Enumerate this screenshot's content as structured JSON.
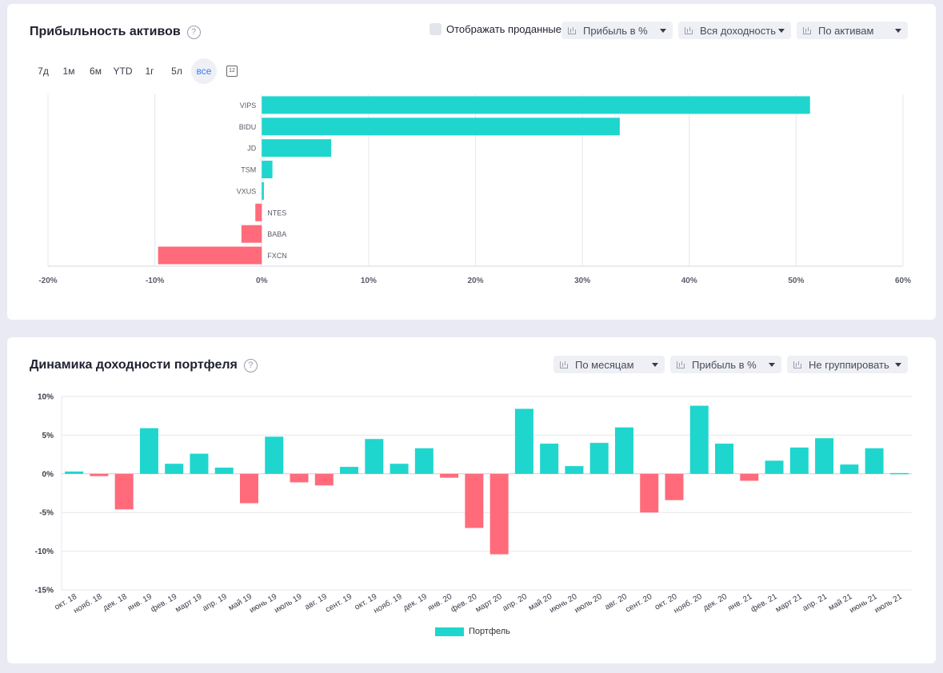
{
  "card1": {
    "title": "Прибыльность активов",
    "help": "?",
    "show_sold_label": "Отображать проданные",
    "dropdowns": [
      "Прибыль в %",
      "Вся доходность",
      "По активам"
    ],
    "periods": [
      "7д",
      "1м",
      "6м",
      "YTD",
      "1г",
      "5л",
      "все"
    ],
    "active_period": "все",
    "calendar_text": "12"
  },
  "card2": {
    "title": "Динамика доходности портфеля",
    "help": "?",
    "dropdowns": [
      "По месяцам",
      "Прибыль в %",
      "Не группировать"
    ],
    "legend": "Портфель"
  },
  "colors": {
    "positive": "#1ed6ce",
    "negative": "#ff6b7a",
    "accent": "#3d7df0"
  },
  "chart_data": [
    {
      "type": "bar",
      "orientation": "horizontal",
      "categories": [
        "VIPS",
        "BIDU",
        "JD",
        "TSM",
        "VXUS",
        "NTES",
        "BABA",
        "FXCN"
      ],
      "values": [
        51.3,
        33.5,
        6.5,
        1.0,
        0.2,
        -0.6,
        -1.9,
        -9.7
      ],
      "xlim": [
        -20,
        60
      ],
      "xticks": [
        "-20%",
        "-10%",
        "0%",
        "10%",
        "20%",
        "30%",
        "40%",
        "50%",
        "60%"
      ],
      "tick_values": [
        -20,
        -10,
        0,
        10,
        20,
        30,
        40,
        50,
        60
      ],
      "grid": true
    },
    {
      "type": "bar",
      "categories": [
        "окт. 18",
        "нояб. 18",
        "дек. 18",
        "янв. 19",
        "фев. 19",
        "март 19",
        "апр. 19",
        "май 19",
        "июнь 19",
        "июль 19",
        "авг. 19",
        "сент. 19",
        "окт. 19",
        "нояб. 19",
        "дек. 19",
        "янв. 20",
        "фев. 20",
        "март 20",
        "апр. 20",
        "май 20",
        "июнь 20",
        "июль 20",
        "авг. 20",
        "сент. 20",
        "окт. 20",
        "нояб. 20",
        "дек. 20",
        "янв. 21",
        "фев. 21",
        "март 21",
        "апр. 21",
        "май 21",
        "июнь 21",
        "июль 21"
      ],
      "series": [
        {
          "name": "Портфель",
          "values": [
            0.3,
            -0.3,
            -4.6,
            5.9,
            1.3,
            2.6,
            0.8,
            -3.8,
            4.8,
            -1.1,
            -1.5,
            0.9,
            4.5,
            1.3,
            3.3,
            -0.5,
            -7.0,
            -10.4,
            8.4,
            3.9,
            1.0,
            4.0,
            6.0,
            -5.0,
            -3.4,
            8.8,
            3.9,
            -0.9,
            1.7,
            3.4,
            4.6,
            1.2,
            3.3,
            0.1
          ]
        }
      ],
      "ylim": [
        -15,
        10
      ],
      "yticks": [
        "10%",
        "5%",
        "0%",
        "-5%",
        "-10%",
        "-15%"
      ],
      "tick_values": [
        10,
        5,
        0,
        -5,
        -10,
        -15
      ],
      "grid": true,
      "legend_position": "bottom"
    }
  ]
}
